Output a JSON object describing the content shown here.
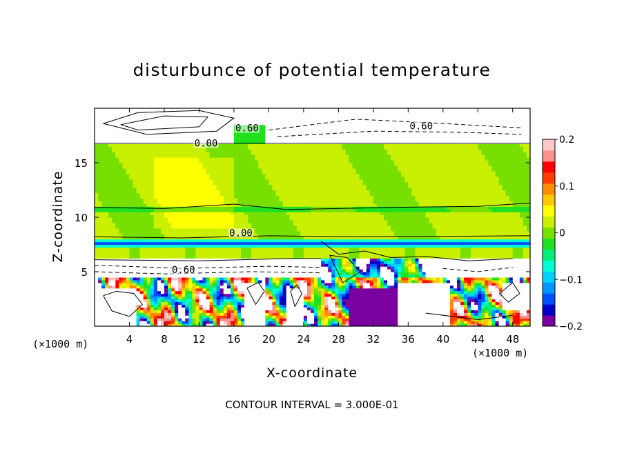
{
  "chart_data": {
    "type": "heatmap",
    "title": "disturbunce of potential temperature",
    "xlabel": "X-coordinate",
    "ylabel": "Z-coordinate",
    "x_unit_left": "(×1000 m)",
    "x_unit_right": "(×1000 m)",
    "xlim": [
      0,
      50
    ],
    "ylim": [
      0,
      20
    ],
    "xticks": [
      "4",
      "8",
      "12",
      "16",
      "20",
      "24",
      "28",
      "32",
      "36",
      "40",
      "44",
      "48"
    ],
    "xtick_values": [
      4,
      8,
      12,
      16,
      20,
      24,
      28,
      32,
      36,
      40,
      44,
      48
    ],
    "yticks": [
      "5",
      "10",
      "15"
    ],
    "ytick_values": [
      5,
      10,
      15
    ],
    "colorbar": {
      "range": [
        -0.2,
        0.2
      ],
      "labels": [
        "0.2",
        "0.1",
        "0",
        "−0.1",
        "−0.2"
      ],
      "label_values": [
        0.2,
        0.1,
        0,
        -0.1,
        -0.2
      ],
      "colors": [
        "#7a00a0",
        "#0000c8",
        "#0050ff",
        "#0096ff",
        "#00d2ff",
        "#00ffd2",
        "#00f07a",
        "#20e020",
        "#78e000",
        "#c8f000",
        "#ffff00",
        "#ffc800",
        "#ff8c00",
        "#ff3c00",
        "#ff0000",
        "#ff9090",
        "#ffc8c8"
      ]
    },
    "contour_labels": [
      {
        "text": "0.60",
        "x": 17.5,
        "z": 18.0
      },
      {
        "text": "0.00",
        "x": 12.8,
        "z": 16.6
      },
      {
        "text": "0.60",
        "x": 37.5,
        "z": 18.2
      },
      {
        "text": "0.00",
        "x": 16.8,
        "z": 8.4
      },
      {
        "text": "0.60",
        "x": 10.2,
        "z": 5.0
      }
    ],
    "contour_interval_text": "CONTOUR INTERVAL = 3.000E-01",
    "grid": false
  }
}
